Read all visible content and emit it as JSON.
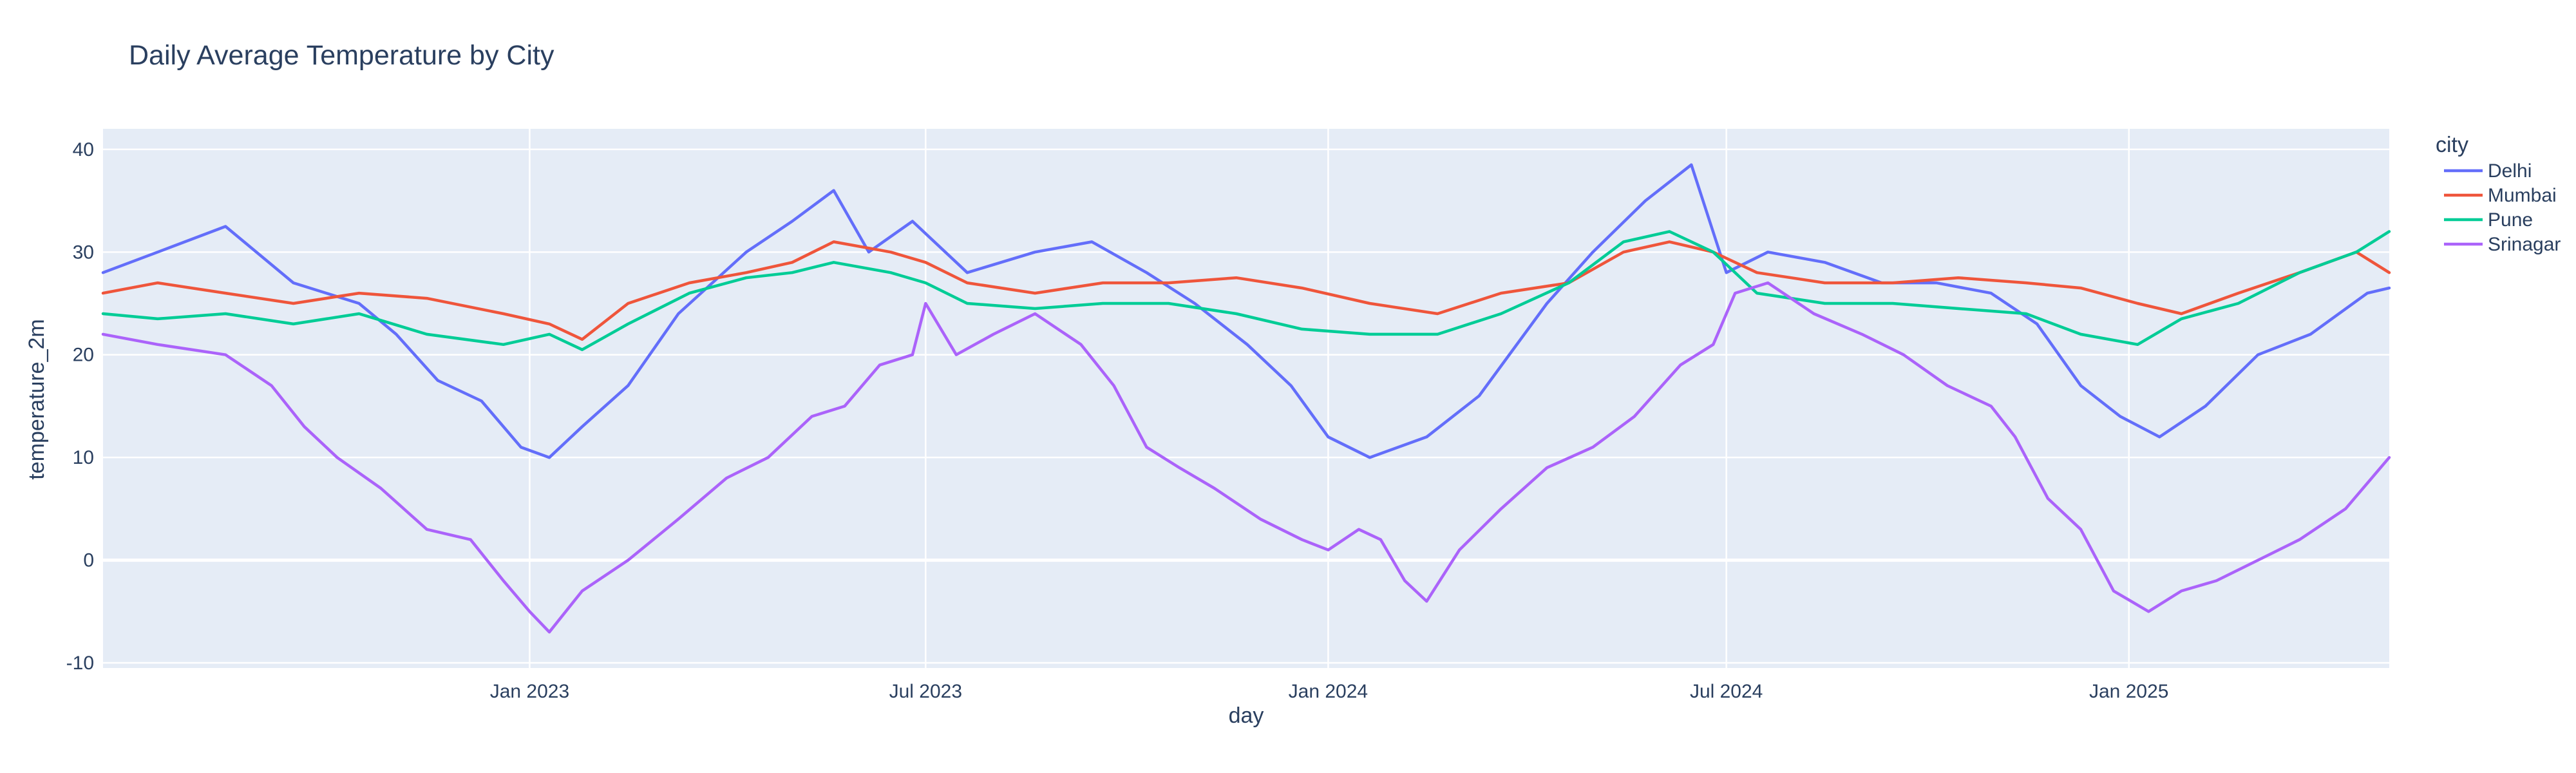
{
  "chart_data": {
    "type": "line",
    "title": "Daily Average Temperature by City",
    "xlabel": "day",
    "ylabel": "temperature_2m",
    "xlim": [
      "2022-06-20",
      "2025-04-30"
    ],
    "ylim": [
      -10.5,
      42
    ],
    "x_ticks": [
      {
        "date": "2023-01-01",
        "label": "Jan 2023"
      },
      {
        "date": "2023-07-01",
        "label": "Jul 2023"
      },
      {
        "date": "2024-01-01",
        "label": "Jan 2024"
      },
      {
        "date": "2024-07-01",
        "label": "Jul 2024"
      },
      {
        "date": "2025-01-01",
        "label": "Jan 2025"
      }
    ],
    "y_ticks": [
      -10,
      0,
      10,
      20,
      30,
      40
    ],
    "grid": true,
    "plot_background": "#e5ecf6",
    "legend": {
      "title": "city",
      "placement": "right"
    },
    "series": [
      {
        "name": "Delhi",
        "color": "#636efa",
        "x": [
          "2022-06-20",
          "2022-07-15",
          "2022-08-15",
          "2022-09-15",
          "2022-10-15",
          "2022-11-01",
          "2022-11-20",
          "2022-12-10",
          "2022-12-28",
          "2023-01-10",
          "2023-01-25",
          "2023-02-15",
          "2023-03-10",
          "2023-04-10",
          "2023-05-01",
          "2023-05-20",
          "2023-06-05",
          "2023-06-25",
          "2023-07-20",
          "2023-08-20",
          "2023-09-15",
          "2023-10-10",
          "2023-11-01",
          "2023-11-25",
          "2023-12-15",
          "2024-01-01",
          "2024-01-20",
          "2024-02-15",
          "2024-03-10",
          "2024-04-10",
          "2024-05-01",
          "2024-05-25",
          "2024-06-15",
          "2024-07-01",
          "2024-07-20",
          "2024-08-15",
          "2024-09-10",
          "2024-10-05",
          "2024-10-30",
          "2024-11-20",
          "2024-12-10",
          "2024-12-28",
          "2025-01-15",
          "2025-02-05",
          "2025-03-01",
          "2025-03-25",
          "2025-04-20",
          "2025-04-30"
        ],
        "values": [
          28,
          30,
          32.5,
          27,
          25,
          22,
          17.5,
          15.5,
          11,
          10,
          13,
          17,
          24,
          30,
          33,
          36,
          30,
          33,
          28,
          30,
          31,
          28,
          25,
          21,
          17,
          12,
          10,
          12,
          16,
          25,
          30,
          35,
          38.5,
          28,
          30,
          29,
          27,
          27,
          26,
          23,
          17,
          14,
          12,
          15,
          20,
          22,
          26,
          26.5
        ]
      },
      {
        "name": "Mumbai",
        "color": "#ef553b",
        "x": [
          "2022-06-20",
          "2022-07-15",
          "2022-08-15",
          "2022-09-15",
          "2022-10-15",
          "2022-11-15",
          "2022-12-20",
          "2023-01-10",
          "2023-01-25",
          "2023-02-15",
          "2023-03-15",
          "2023-04-10",
          "2023-05-01",
          "2023-05-20",
          "2023-06-15",
          "2023-07-01",
          "2023-07-20",
          "2023-08-20",
          "2023-09-20",
          "2023-10-20",
          "2023-11-20",
          "2023-12-20",
          "2024-01-20",
          "2024-02-20",
          "2024-03-20",
          "2024-04-20",
          "2024-05-15",
          "2024-06-05",
          "2024-06-25",
          "2024-07-15",
          "2024-08-15",
          "2024-09-15",
          "2024-10-15",
          "2024-11-15",
          "2024-12-10",
          "2025-01-05",
          "2025-01-25",
          "2025-02-20",
          "2025-03-20",
          "2025-04-15",
          "2025-04-30"
        ],
        "values": [
          26,
          27,
          26,
          25,
          26,
          25.5,
          24,
          23,
          21.5,
          25,
          27,
          28,
          29,
          31,
          30,
          29,
          27,
          26,
          27,
          27,
          27.5,
          26.5,
          25,
          24,
          26,
          27,
          30,
          31,
          30,
          28,
          27,
          27,
          27.5,
          27,
          26.5,
          25,
          24,
          26,
          28,
          30,
          28
        ]
      },
      {
        "name": "Pune",
        "color": "#00cc96",
        "x": [
          "2022-06-20",
          "2022-07-15",
          "2022-08-15",
          "2022-09-15",
          "2022-10-15",
          "2022-11-15",
          "2022-12-20",
          "2023-01-10",
          "2023-01-25",
          "2023-02-15",
          "2023-03-15",
          "2023-04-10",
          "2023-05-01",
          "2023-05-20",
          "2023-06-15",
          "2023-07-01",
          "2023-07-20",
          "2023-08-20",
          "2023-09-20",
          "2023-10-20",
          "2023-11-20",
          "2023-12-20",
          "2024-01-20",
          "2024-02-20",
          "2024-03-20",
          "2024-04-20",
          "2024-05-15",
          "2024-06-05",
          "2024-06-25",
          "2024-07-15",
          "2024-08-15",
          "2024-09-15",
          "2024-10-15",
          "2024-11-15",
          "2024-12-10",
          "2025-01-05",
          "2025-01-25",
          "2025-02-20",
          "2025-03-20",
          "2025-04-15",
          "2025-04-30"
        ],
        "values": [
          24,
          23.5,
          24,
          23,
          24,
          22,
          21,
          22,
          20.5,
          23,
          26,
          27.5,
          28,
          29,
          28,
          27,
          25,
          24.5,
          25,
          25,
          24,
          22.5,
          22,
          22,
          24,
          27,
          31,
          32,
          30,
          26,
          25,
          25,
          24.5,
          24,
          22,
          21,
          23.5,
          25,
          28,
          30,
          32
        ]
      },
      {
        "name": "Srinagar",
        "color": "#ab63fa",
        "x": [
          "2022-06-20",
          "2022-07-15",
          "2022-08-15",
          "2022-09-05",
          "2022-09-20",
          "2022-10-05",
          "2022-10-25",
          "2022-11-15",
          "2022-12-05",
          "2022-12-20",
          "2023-01-01",
          "2023-01-10",
          "2023-01-25",
          "2023-02-15",
          "2023-03-10",
          "2023-04-01",
          "2023-04-20",
          "2023-05-10",
          "2023-05-25",
          "2023-06-10",
          "2023-06-25",
          "2023-07-01",
          "2023-07-15",
          "2023-08-01",
          "2023-08-20",
          "2023-09-10",
          "2023-09-25",
          "2023-10-10",
          "2023-10-25",
          "2023-11-10",
          "2023-12-01",
          "2023-12-20",
          "2024-01-01",
          "2024-01-15",
          "2024-01-25",
          "2024-02-05",
          "2024-02-15",
          "2024-03-01",
          "2024-03-20",
          "2024-04-10",
          "2024-05-01",
          "2024-05-20",
          "2024-06-10",
          "2024-06-25",
          "2024-07-05",
          "2024-07-20",
          "2024-08-10",
          "2024-09-01",
          "2024-09-20",
          "2024-10-10",
          "2024-10-30",
          "2024-11-10",
          "2024-11-25",
          "2024-12-10",
          "2024-12-25",
          "2025-01-10",
          "2025-01-25",
          "2025-02-10",
          "2025-03-01",
          "2025-03-20",
          "2025-04-10",
          "2025-04-30"
        ],
        "values": [
          22,
          21,
          20,
          17,
          13,
          10,
          7,
          3,
          2,
          -2,
          -5,
          -7,
          -3,
          0,
          4,
          8,
          10,
          14,
          15,
          19,
          20,
          25,
          20,
          22,
          24,
          21,
          17,
          11,
          9,
          7,
          4,
          2,
          1,
          3,
          2,
          -2,
          -4,
          1,
          5,
          9,
          11,
          14,
          19,
          21,
          26,
          27,
          24,
          22,
          20,
          17,
          15,
          12,
          6,
          3,
          -3,
          -5,
          -3,
          -2,
          0,
          2,
          5,
          10
        ]
      }
    ]
  }
}
